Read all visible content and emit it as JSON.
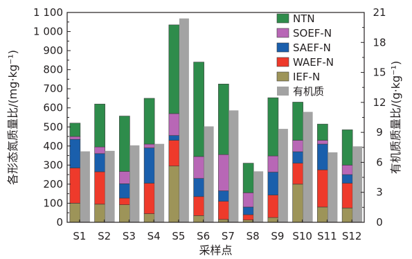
{
  "chart_data": {
    "type": "bar",
    "stacked": true,
    "xlabel": "采样点",
    "ylabel_left": "各形态氮质量比/(mg·kg⁻¹)",
    "ylabel_right": "有机质质量比/(g·kg⁻¹)",
    "ylim_left": [
      0,
      1100
    ],
    "ylim_right": [
      0,
      21
    ],
    "yticks_left": [
      0,
      50,
      100,
      150,
      200,
      250,
      300,
      350,
      400,
      450,
      500,
      550,
      600,
      650,
      700,
      750,
      800,
      850,
      900,
      950,
      1000,
      1050,
      1100
    ],
    "yticks_left_labels": [
      "0",
      "50",
      "100",
      "150",
      "200",
      "250",
      "300",
      "350",
      "400",
      "450",
      "500",
      "550",
      "600",
      "650",
      "700",
      "750",
      "800",
      "850",
      "900",
      "950",
      "1 000",
      "1 050",
      "1 100"
    ],
    "yticks_right": [
      0,
      3,
      6,
      9,
      12,
      15,
      18,
      21
    ],
    "categories": [
      "S1",
      "S2",
      "S3",
      "S4",
      "S5",
      "S6",
      "S7",
      "S8",
      "S9",
      "S10",
      "S11",
      "S12"
    ],
    "legend_position": "top-right",
    "grid": false,
    "series": [
      {
        "name": "IEF-N",
        "axis": "left",
        "color": "#9d9459",
        "values": [
          100,
          95,
          92,
          45,
          295,
          35,
          15,
          12,
          25,
          200,
          80,
          75
        ]
      },
      {
        "name": "WAEF-N",
        "axis": "left",
        "color": "#ee3a2b",
        "values": [
          185,
          170,
          35,
          160,
          135,
          100,
          95,
          28,
          118,
          110,
          195,
          130
        ]
      },
      {
        "name": "SAEF-N",
        "axis": "left",
        "color": "#1a5fac",
        "values": [
          150,
          95,
          75,
          185,
          25,
          95,
          55,
          40,
          120,
          60,
          135,
          45
        ]
      },
      {
        "name": "SOEF-N",
        "axis": "left",
        "color": "#b867b6",
        "values": [
          15,
          35,
          65,
          20,
          115,
          115,
          190,
          75,
          85,
          60,
          20,
          50
        ]
      },
      {
        "name": "NTN",
        "axis": "left",
        "color": "#2e8c4b",
        "values": [
          70,
          225,
          290,
          240,
          465,
          495,
          370,
          155,
          305,
          200,
          85,
          185
        ]
      },
      {
        "name": "有机质",
        "axis": "right",
        "color": "#a3a3a3",
        "values": [
          7.1,
          7.15,
          7.7,
          7.85,
          20.4,
          9.6,
          11.2,
          5.1,
          9.35,
          11.05,
          7.0,
          7.6
        ]
      }
    ]
  }
}
